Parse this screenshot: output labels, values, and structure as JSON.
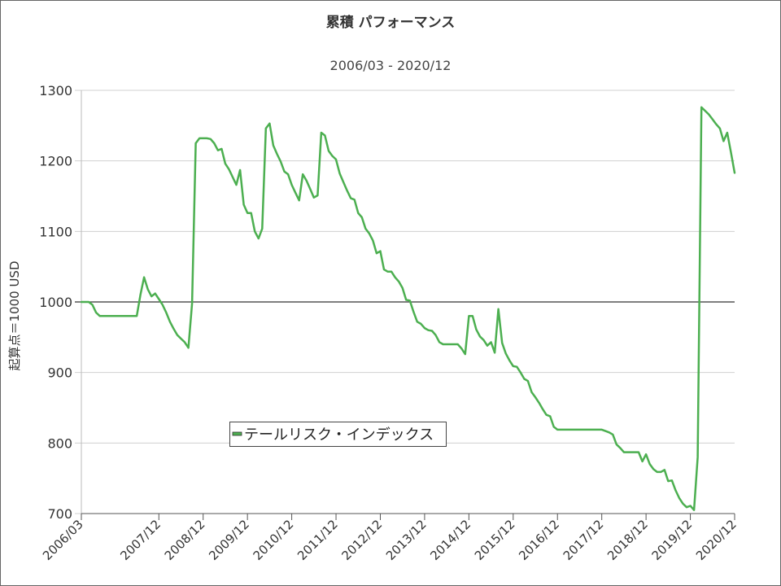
{
  "chart_data": {
    "type": "line",
    "title": "累積 パフォーマンス",
    "subtitle": "2006/03 - 2020/12",
    "xlabel": "",
    "ylabel": "起算点＝1000 USD",
    "xlim": [
      "2006/03",
      "2020/12"
    ],
    "ylim": [
      700,
      1300
    ],
    "yticks": [
      700,
      800,
      900,
      1000,
      1100,
      1200,
      1300
    ],
    "xticks": [
      "2006/03",
      "2007/12",
      "2008/12",
      "2009/12",
      "2010/12",
      "2011/12",
      "2012/12",
      "2013/12",
      "2014/12",
      "2015/12",
      "2016/12",
      "2017/12",
      "2018/12",
      "2019/12",
      "2020/12"
    ],
    "grid": "horizontal",
    "reference_line": 1000,
    "reference_line_color": "#333333",
    "legend_position": "lower-left inside plot",
    "x": [
      "2006/03",
      "2006/04",
      "2006/05",
      "2006/06",
      "2006/07",
      "2006/08",
      "2006/09",
      "2006/10",
      "2006/11",
      "2006/12",
      "2007/01",
      "2007/02",
      "2007/03",
      "2007/04",
      "2007/05",
      "2007/06",
      "2007/07",
      "2007/08",
      "2007/09",
      "2007/10",
      "2007/11",
      "2007/12",
      "2008/01",
      "2008/02",
      "2008/03",
      "2008/04",
      "2008/05",
      "2008/06",
      "2008/07",
      "2008/08",
      "2008/09",
      "2008/10",
      "2008/11",
      "2008/12",
      "2009/01",
      "2009/02",
      "2009/03",
      "2009/04",
      "2009/05",
      "2009/06",
      "2009/07",
      "2009/08",
      "2009/09",
      "2009/10",
      "2009/11",
      "2009/12",
      "2010/01",
      "2010/02",
      "2010/03",
      "2010/04",
      "2010/05",
      "2010/06",
      "2010/07",
      "2010/08",
      "2010/09",
      "2010/10",
      "2010/11",
      "2010/12",
      "2011/01",
      "2011/02",
      "2011/03",
      "2011/04",
      "2011/05",
      "2011/06",
      "2011/07",
      "2011/08",
      "2011/09",
      "2011/10",
      "2011/11",
      "2011/12",
      "2012/01",
      "2012/02",
      "2012/03",
      "2012/04",
      "2012/05",
      "2012/06",
      "2012/07",
      "2012/08",
      "2012/09",
      "2012/10",
      "2012/11",
      "2012/12",
      "2013/01",
      "2013/02",
      "2013/03",
      "2013/04",
      "2013/05",
      "2013/06",
      "2013/07",
      "2013/08",
      "2013/09",
      "2013/10",
      "2013/11",
      "2013/12",
      "2014/01",
      "2014/02",
      "2014/03",
      "2014/04",
      "2014/05",
      "2014/06",
      "2014/07",
      "2014/08",
      "2014/09",
      "2014/10",
      "2014/11",
      "2014/12",
      "2015/01",
      "2015/02",
      "2015/03",
      "2015/04",
      "2015/05",
      "2015/06",
      "2015/07",
      "2015/08",
      "2015/09",
      "2015/10",
      "2015/11",
      "2015/12",
      "2016/01",
      "2016/02",
      "2016/03",
      "2016/04",
      "2016/05",
      "2016/06",
      "2016/07",
      "2016/08",
      "2016/09",
      "2016/10",
      "2016/11",
      "2016/12",
      "2017/01",
      "2017/02",
      "2017/03",
      "2017/04",
      "2017/05",
      "2017/06",
      "2017/07",
      "2017/08",
      "2017/09",
      "2017/10",
      "2017/11",
      "2017/12",
      "2018/01",
      "2018/02",
      "2018/03",
      "2018/04",
      "2018/05",
      "2018/06",
      "2018/07",
      "2018/08",
      "2018/09",
      "2018/10",
      "2018/11",
      "2018/12",
      "2019/01",
      "2019/02",
      "2019/03",
      "2019/04",
      "2019/05",
      "2019/06",
      "2019/07",
      "2019/08",
      "2019/09",
      "2019/10",
      "2019/11",
      "2019/12",
      "2020/01",
      "2020/02",
      "2020/03",
      "2020/04",
      "2020/05",
      "2020/06",
      "2020/07",
      "2020/08",
      "2020/09",
      "2020/10",
      "2020/11",
      "2020/12"
    ],
    "series": [
      {
        "name": "テールリスク・インデックス",
        "color": "#4caf50",
        "values": [
          1000,
          1000,
          1000,
          996,
          985,
          980,
          980,
          980,
          980,
          980,
          980,
          980,
          980,
          980,
          980,
          980,
          1010,
          1035,
          1018,
          1008,
          1012,
          1004,
          996,
          985,
          972,
          962,
          953,
          948,
          943,
          935,
          998,
          1225,
          1232,
          1232,
          1232,
          1231,
          1225,
          1215,
          1217,
          1196,
          1188,
          1177,
          1166,
          1187,
          1138,
          1126,
          1126,
          1100,
          1090,
          1104,
          1246,
          1253,
          1222,
          1210,
          1199,
          1185,
          1181,
          1166,
          1155,
          1144,
          1181,
          1172,
          1160,
          1148,
          1151,
          1240,
          1236,
          1214,
          1207,
          1202,
          1182,
          1170,
          1158,
          1147,
          1145,
          1126,
          1120,
          1104,
          1097,
          1087,
          1069,
          1072,
          1046,
          1043,
          1043,
          1035,
          1029,
          1020,
          1003,
          1002,
          986,
          972,
          969,
          963,
          960,
          959,
          953,
          943,
          940,
          940,
          940,
          940,
          940,
          934,
          926,
          980,
          980,
          961,
          951,
          946,
          938,
          943,
          928,
          990,
          942,
          927,
          917,
          909,
          908,
          900,
          891,
          888,
          872,
          865,
          857,
          848,
          840,
          838,
          823,
          819,
          819,
          819,
          819,
          819,
          819,
          819,
          819,
          819,
          819,
          819,
          819,
          819,
          817,
          815,
          812,
          798,
          793,
          787,
          787,
          787,
          787,
          787,
          774,
          784,
          770,
          763,
          759,
          759,
          762,
          746,
          747,
          733,
          722,
          714,
          709,
          711,
          705,
          780,
          1276,
          1271,
          1266,
          1259,
          1252,
          1246,
          1228,
          1240,
          1212,
          1183
        ]
      }
    ]
  }
}
